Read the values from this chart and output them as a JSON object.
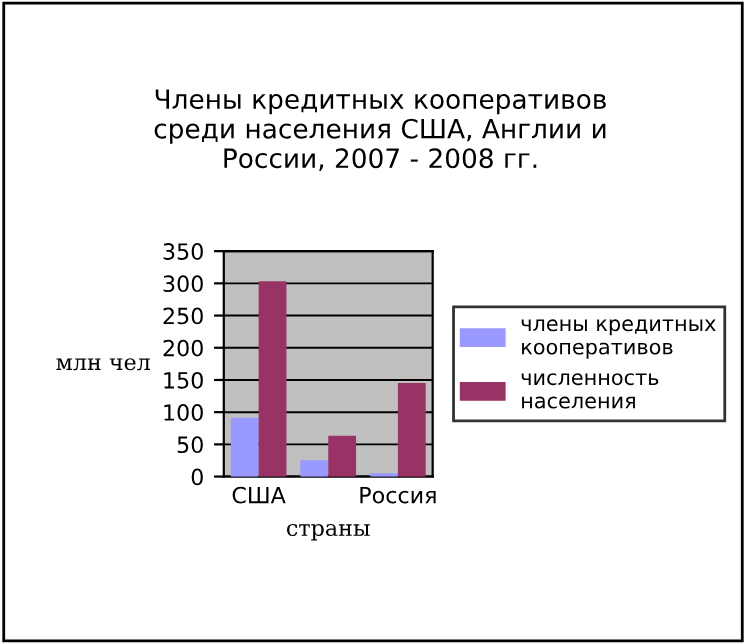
{
  "chart_data": {
    "type": "bar",
    "title": "Члены кредитных кооперативов\nсреди населения США, Англии и\nРоссии, 2007 - 2008 гг.",
    "xlabel": "страны",
    "ylabel": "млн чел",
    "categories": [
      "США",
      null,
      "Россия"
    ],
    "series": [
      {
        "name": "члены кредитных\nкооперативов",
        "color": "#9999ff",
        "values": [
          88,
          22,
          2
        ]
      },
      {
        "name": "численность\nнаселения",
        "color": "#993366",
        "values": [
          300,
          60,
          142
        ]
      }
    ],
    "ylim": [
      0,
      350
    ],
    "yticks": [
      0,
      50,
      100,
      150,
      200,
      250,
      300,
      350
    ],
    "grid": "y",
    "legend": "right"
  }
}
